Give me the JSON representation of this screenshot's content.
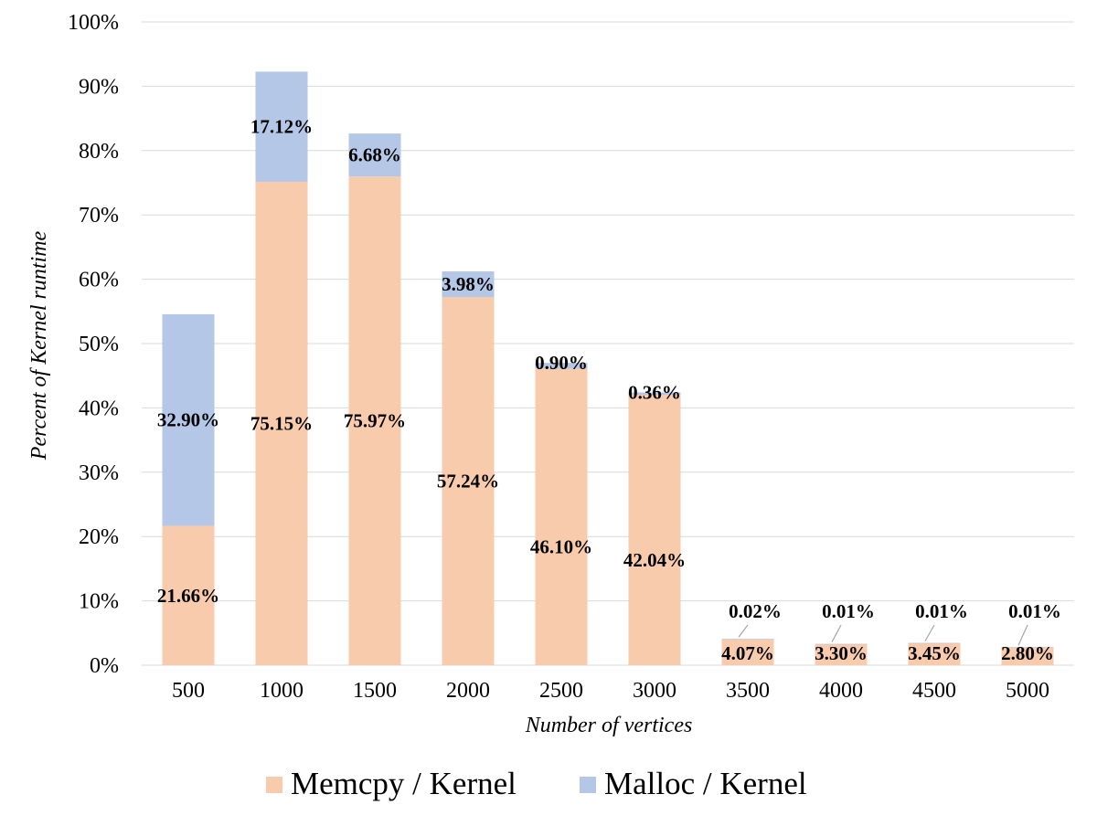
{
  "chart_data": {
    "type": "bar",
    "stacked": true,
    "categories": [
      "500",
      "1000",
      "1500",
      "2000",
      "2500",
      "3000",
      "3500",
      "4000",
      "4500",
      "5000"
    ],
    "series": [
      {
        "name": "Memcpy / Kernel",
        "color": "#f8cbad",
        "values": [
          21.66,
          75.15,
          75.97,
          57.24,
          46.1,
          42.04,
          4.07,
          3.3,
          3.45,
          2.8
        ],
        "labels": [
          "21.66%",
          "75.15%",
          "75.97%",
          "57.24%",
          "46.10%",
          "42.04%",
          "4.07%",
          "3.30%",
          "3.45%",
          "2.80%"
        ]
      },
      {
        "name": "Malloc / Kernel",
        "color": "#b4c7e7",
        "values": [
          32.9,
          17.12,
          6.68,
          3.98,
          0.9,
          0.36,
          0.02,
          0.01,
          0.01,
          0.01
        ],
        "labels": [
          "32.90%",
          "17.12%",
          "6.68%",
          "3.98%",
          "0.90%",
          "0.36%",
          "0.02%",
          "0.01%",
          "0.01%",
          "0.01%"
        ]
      }
    ],
    "xlabel": "Number of vertices",
    "ylabel": "Percent of Kernel runtime",
    "ylim": [
      0,
      100
    ],
    "yticks": [
      "0%",
      "10%",
      "20%",
      "30%",
      "40%",
      "50%",
      "60%",
      "70%",
      "80%",
      "90%",
      "100%"
    ],
    "grid": true,
    "legend_position": "bottom"
  }
}
